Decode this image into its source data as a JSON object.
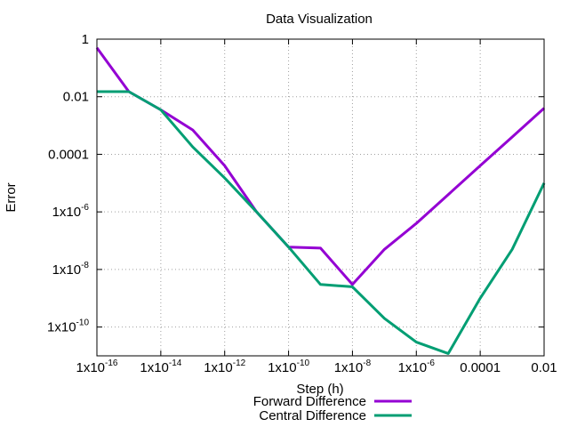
{
  "chart_data": {
    "type": "line",
    "title": "Data Visualization",
    "xlabel": "Step (h)",
    "ylabel": "Error",
    "x_scale": "log",
    "y_scale": "log",
    "xlim": [
      1e-16,
      0.01
    ],
    "ylim": [
      1e-11,
      1
    ],
    "x_ticks": [
      {
        "value": 1e-16,
        "base": "1x10",
        "exp": "-16"
      },
      {
        "value": 1e-14,
        "base": "1x10",
        "exp": "-14"
      },
      {
        "value": 1e-12,
        "base": "1x10",
        "exp": "-12"
      },
      {
        "value": 1e-10,
        "base": "1x10",
        "exp": "-10"
      },
      {
        "value": 1e-08,
        "base": "1x10",
        "exp": "-8"
      },
      {
        "value": 1e-06,
        "base": "1x10",
        "exp": "-6"
      },
      {
        "value": 0.0001,
        "base": "0.0001",
        "exp": ""
      },
      {
        "value": 0.01,
        "base": "0.01",
        "exp": ""
      }
    ],
    "y_ticks": [
      {
        "value": 1,
        "base": "1",
        "exp": ""
      },
      {
        "value": 0.01,
        "base": "0.01",
        "exp": ""
      },
      {
        "value": 0.0001,
        "base": "0.0001",
        "exp": ""
      },
      {
        "value": 1e-06,
        "base": "1x10",
        "exp": "-6"
      },
      {
        "value": 1e-08,
        "base": "1x10",
        "exp": "-8"
      },
      {
        "value": 1e-10,
        "base": "1x10",
        "exp": "-10"
      }
    ],
    "grid": true,
    "legend_position": "bottom-center",
    "series": [
      {
        "name": "Forward Difference",
        "color": "#9400d3",
        "x": [
          1e-16,
          1e-15,
          1e-14,
          1e-13,
          1e-12,
          1e-11,
          1e-10,
          1e-09,
          1e-08,
          1e-07,
          1e-06,
          1e-05,
          0.0001,
          0.001,
          0.01
        ],
        "y": [
          0.5,
          0.015,
          0.0035,
          0.0007,
          4e-05,
          1e-06,
          6e-08,
          5.5e-08,
          3e-09,
          5e-08,
          4e-07,
          4e-06,
          4e-05,
          0.0004,
          0.004
        ]
      },
      {
        "name": "Central Difference",
        "color": "#009e73",
        "x": [
          1e-16,
          1e-15,
          1e-14,
          1e-13,
          1e-12,
          1e-11,
          1e-10,
          1e-09,
          1e-08,
          1e-07,
          1e-06,
          1e-05,
          0.0001,
          0.001,
          0.01
        ],
        "y": [
          0.015,
          0.015,
          0.0035,
          0.00018,
          1.5e-05,
          1e-06,
          6e-08,
          3e-09,
          2.5e-09,
          2e-10,
          3e-11,
          1.2e-11,
          1e-09,
          5e-08,
          1e-05
        ]
      }
    ]
  }
}
